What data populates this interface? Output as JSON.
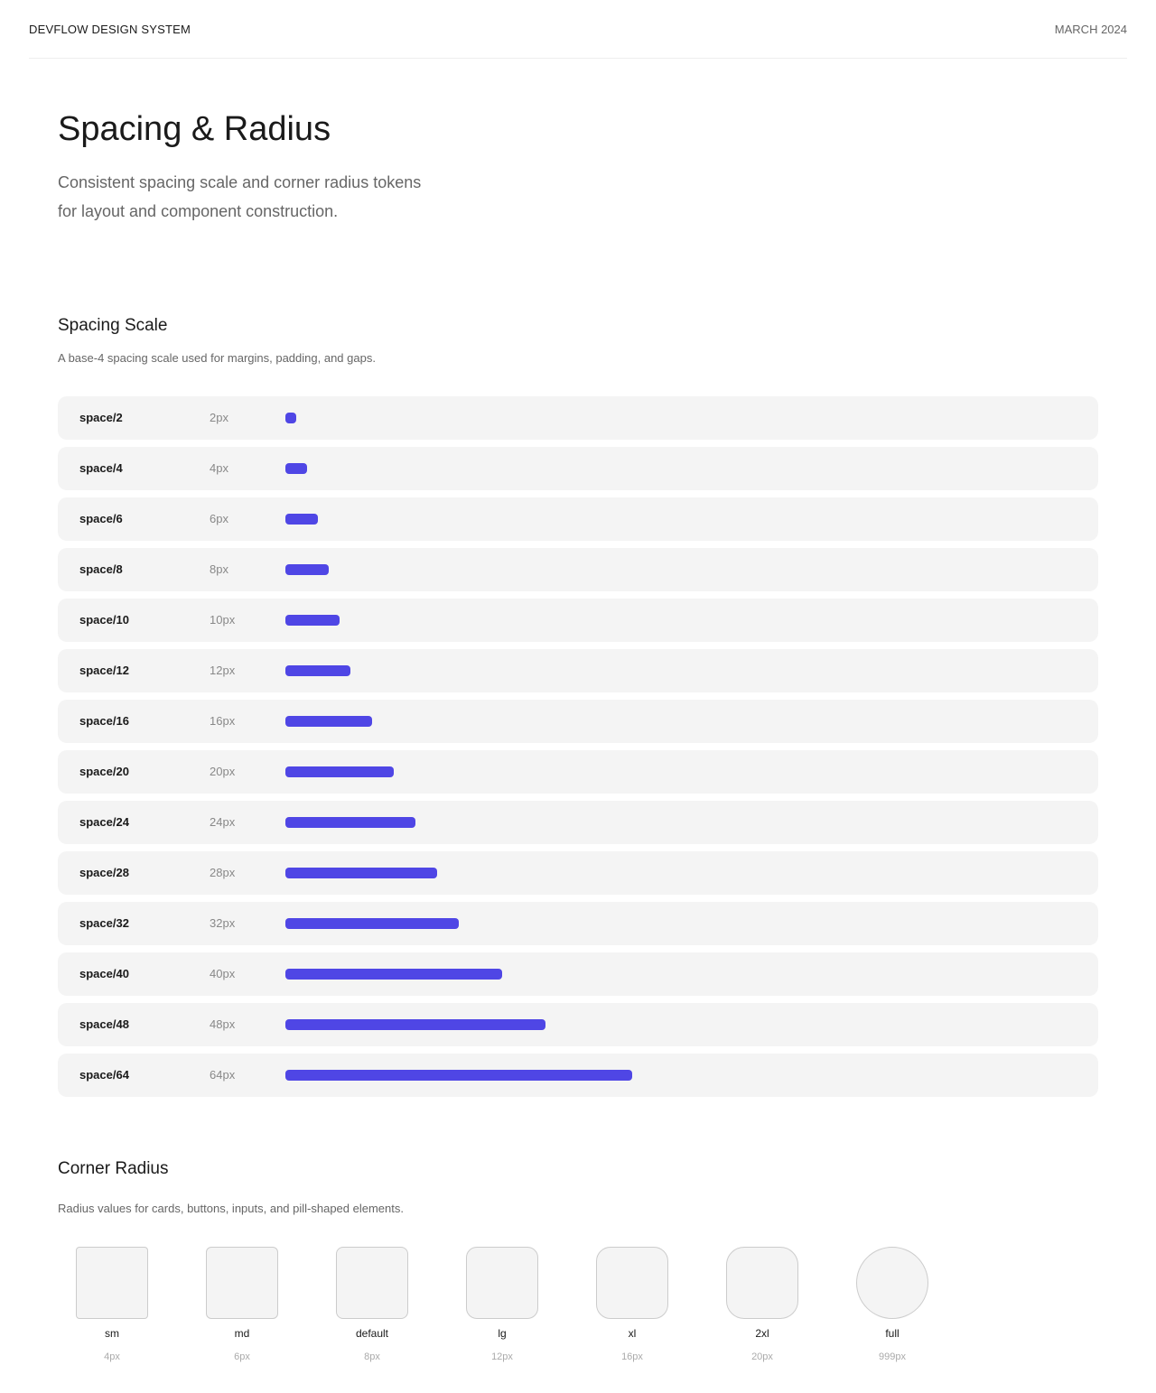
{
  "header": {
    "brand": "DEVFLOW DESIGN SYSTEM",
    "date": "MARCH 2024"
  },
  "hero": {
    "title": "Spacing & Radius",
    "description": "Consistent spacing scale and corner radius tokens for layout and component construction."
  },
  "spacing": {
    "title": "Spacing Scale",
    "description": "A base-4 spacing scale used for margins, padding, and gaps.",
    "tokens": [
      {
        "name": "space/2",
        "label": "2px",
        "value": 2
      },
      {
        "name": "space/4",
        "label": "4px",
        "value": 4
      },
      {
        "name": "space/6",
        "label": "6px",
        "value": 6
      },
      {
        "name": "space/8",
        "label": "8px",
        "value": 8
      },
      {
        "name": "space/10",
        "label": "10px",
        "value": 10
      },
      {
        "name": "space/12",
        "label": "12px",
        "value": 12
      },
      {
        "name": "space/16",
        "label": "16px",
        "value": 16
      },
      {
        "name": "space/20",
        "label": "20px",
        "value": 20
      },
      {
        "name": "space/24",
        "label": "24px",
        "value": 24
      },
      {
        "name": "space/28",
        "label": "28px",
        "value": 28
      },
      {
        "name": "space/32",
        "label": "32px",
        "value": 32
      },
      {
        "name": "space/40",
        "label": "40px",
        "value": 40
      },
      {
        "name": "space/48",
        "label": "48px",
        "value": 48
      },
      {
        "name": "space/64",
        "label": "64px",
        "value": 64
      }
    ]
  },
  "radius": {
    "title": "Corner Radius",
    "description": "Radius values for cards, buttons, inputs, and pill-shaped elements.",
    "tokens": [
      {
        "name": "sm",
        "label": "4px",
        "value": 4
      },
      {
        "name": "md",
        "label": "6px",
        "value": 6
      },
      {
        "name": "default",
        "label": "8px",
        "value": 8
      },
      {
        "name": "lg",
        "label": "12px",
        "value": 12
      },
      {
        "name": "xl",
        "label": "16px",
        "value": 16
      },
      {
        "name": "2xl",
        "label": "20px",
        "value": 20
      },
      {
        "name": "full",
        "label": "999px",
        "value": 999
      }
    ]
  }
}
